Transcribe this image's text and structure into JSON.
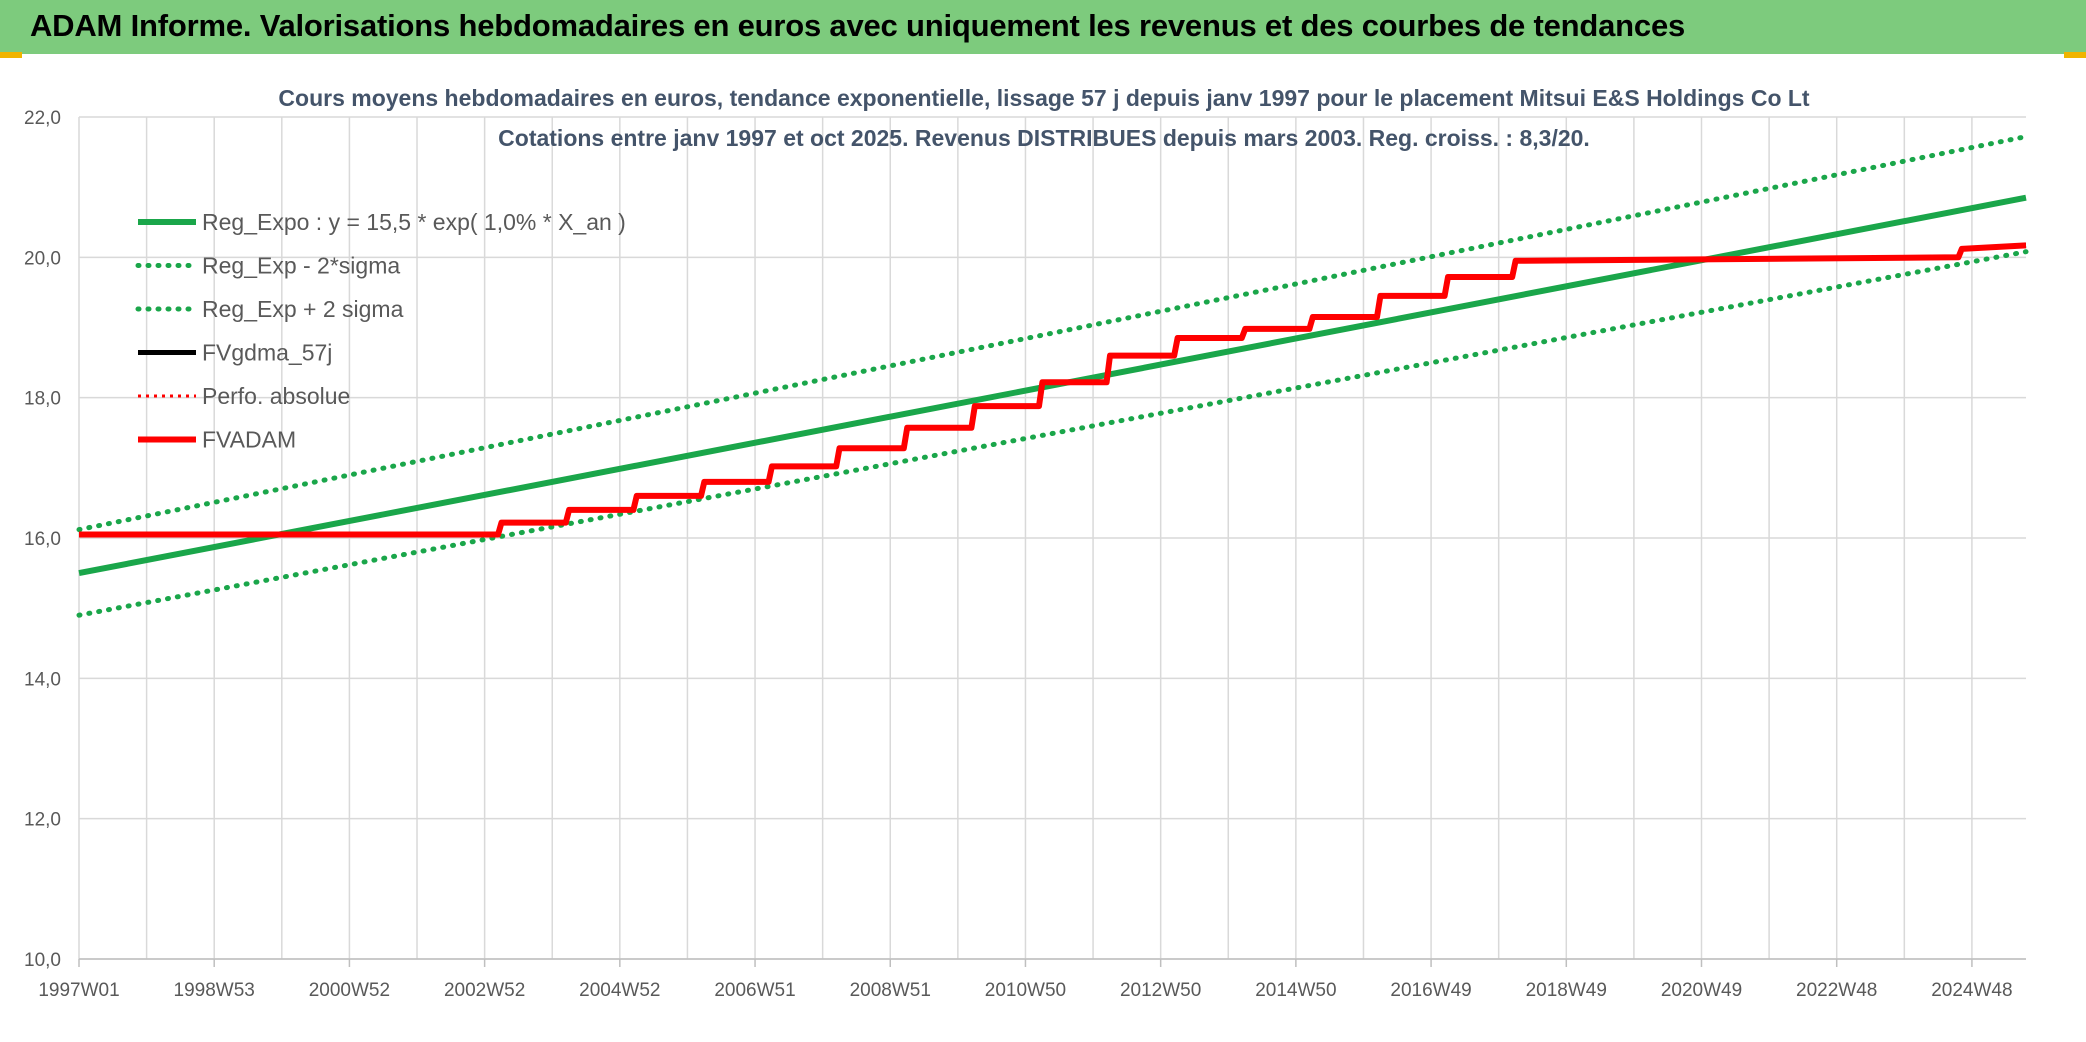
{
  "banner": {
    "title": "ADAM Informe. Valorisations hebdomadaires en euros avec uniquement les revenus et des courbes de tendances",
    "background": "#7dcb7d"
  },
  "chart_data": {
    "type": "line",
    "title": "Cours moyens hebdomadaires en euros, tendance exponentielle, lissage 57 j depuis janv 1997 pour le placement Mitsui E&S Holdings Co Lt",
    "subtitle": "Cotations entre janv 1997 et oct 2025. Revenus DISTRIBUES depuis mars 2003. Reg. croiss. : 8,3/20.",
    "ylim": [
      10,
      22
    ],
    "yticks": [
      "10,0",
      "12,0",
      "14,0",
      "16,0",
      "18,0",
      "20,0",
      "22,0"
    ],
    "xlim": [
      1997.0,
      2025.8
    ],
    "xticks": [
      {
        "label": "1997W01",
        "year": 1997.0
      },
      {
        "label": "1998W53",
        "year": 1999.0
      },
      {
        "label": "2000W52",
        "year": 2001.0
      },
      {
        "label": "2002W52",
        "year": 2003.0
      },
      {
        "label": "2004W52",
        "year": 2005.0
      },
      {
        "label": "2006W51",
        "year": 2007.0
      },
      {
        "label": "2008W51",
        "year": 2009.0
      },
      {
        "label": "2010W50",
        "year": 2011.0
      },
      {
        "label": "2012W50",
        "year": 2013.0
      },
      {
        "label": "2014W50",
        "year": 2015.0
      },
      {
        "label": "2016W49",
        "year": 2017.0
      },
      {
        "label": "2018W49",
        "year": 2019.0
      },
      {
        "label": "2020W49",
        "year": 2021.0
      },
      {
        "label": "2022W48",
        "year": 2023.0
      },
      {
        "label": "2024W48",
        "year": 2025.0
      }
    ],
    "grid": true,
    "legend_position": "top-left",
    "series": [
      {
        "name": "Reg_Expo : y = 15,5 * exp( 1,0% *  X_an )",
        "color": "#1aa64a",
        "style": "solid",
        "x": [
          1997.0,
          2025.8
        ],
        "y": [
          15.5,
          20.85
        ]
      },
      {
        "name": "Reg_Exp - 2*sigma",
        "color": "#1aa64a",
        "style": "dotted",
        "x": [
          1997.0,
          2025.8
        ],
        "y": [
          14.9,
          20.08
        ]
      },
      {
        "name": "Reg_Exp + 2 sigma",
        "color": "#1aa64a",
        "style": "dotted",
        "x": [
          1997.0,
          2025.8
        ],
        "y": [
          16.12,
          21.72
        ]
      },
      {
        "name": "FVgdma_57j",
        "color": "#000000",
        "style": "solid",
        "x": [
          1997.0,
          2003.2,
          2003.25,
          2004.2,
          2004.25,
          2005.2,
          2005.25,
          2006.2,
          2006.25,
          2007.2,
          2007.25,
          2008.2,
          2008.25,
          2009.2,
          2009.25,
          2010.2,
          2010.25,
          2011.2,
          2011.25,
          2012.2,
          2012.25,
          2013.2,
          2013.25,
          2014.2,
          2014.25,
          2015.2,
          2015.25,
          2016.2,
          2016.25,
          2017.2,
          2017.25,
          2018.2,
          2018.25,
          2024.8,
          2024.85,
          2025.8
        ],
        "y": [
          16.05,
          16.05,
          16.22,
          16.22,
          16.4,
          16.4,
          16.6,
          16.6,
          16.8,
          16.8,
          17.02,
          17.02,
          17.28,
          17.28,
          17.57,
          17.57,
          17.88,
          17.88,
          18.22,
          18.22,
          18.6,
          18.6,
          18.85,
          18.85,
          18.98,
          18.98,
          19.15,
          19.15,
          19.45,
          19.45,
          19.72,
          19.72,
          19.95,
          20.0,
          20.12,
          20.17
        ]
      },
      {
        "name": "Perfo. absolue",
        "color": "#ff0000",
        "style": "dotted",
        "x": [
          1997.0,
          2003.2,
          2003.25,
          2004.2,
          2004.25,
          2005.2,
          2005.25,
          2006.2,
          2006.25,
          2007.2,
          2007.25,
          2008.2,
          2008.25,
          2009.2,
          2009.25,
          2010.2,
          2010.25,
          2011.2,
          2011.25,
          2012.2,
          2012.25,
          2013.2,
          2013.25,
          2014.2,
          2014.25,
          2015.2,
          2015.25,
          2016.2,
          2016.25,
          2017.2,
          2017.25,
          2018.2,
          2018.25,
          2024.8,
          2024.85,
          2025.8
        ],
        "y": [
          16.05,
          16.05,
          16.22,
          16.22,
          16.4,
          16.4,
          16.6,
          16.6,
          16.8,
          16.8,
          17.02,
          17.02,
          17.28,
          17.28,
          17.57,
          17.57,
          17.88,
          17.88,
          18.22,
          18.22,
          18.6,
          18.6,
          18.85,
          18.85,
          18.98,
          18.98,
          19.15,
          19.15,
          19.45,
          19.45,
          19.72,
          19.72,
          19.95,
          20.0,
          20.12,
          20.17
        ]
      },
      {
        "name": "FVADAM",
        "color": "#ff0000",
        "style": "solid",
        "x": [
          1997.0,
          2003.2,
          2003.25,
          2004.2,
          2004.25,
          2005.2,
          2005.25,
          2006.2,
          2006.25,
          2007.2,
          2007.25,
          2008.2,
          2008.25,
          2009.2,
          2009.25,
          2010.2,
          2010.25,
          2011.2,
          2011.25,
          2012.2,
          2012.25,
          2013.2,
          2013.25,
          2014.2,
          2014.25,
          2015.2,
          2015.25,
          2016.2,
          2016.25,
          2017.2,
          2017.25,
          2018.2,
          2018.25,
          2024.8,
          2024.85,
          2025.8
        ],
        "y": [
          16.05,
          16.05,
          16.22,
          16.22,
          16.4,
          16.4,
          16.6,
          16.6,
          16.8,
          16.8,
          17.02,
          17.02,
          17.28,
          17.28,
          17.57,
          17.57,
          17.88,
          17.88,
          18.22,
          18.22,
          18.6,
          18.6,
          18.85,
          18.85,
          18.98,
          18.98,
          19.15,
          19.15,
          19.45,
          19.45,
          19.72,
          19.72,
          19.95,
          20.0,
          20.12,
          20.17
        ]
      }
    ]
  }
}
